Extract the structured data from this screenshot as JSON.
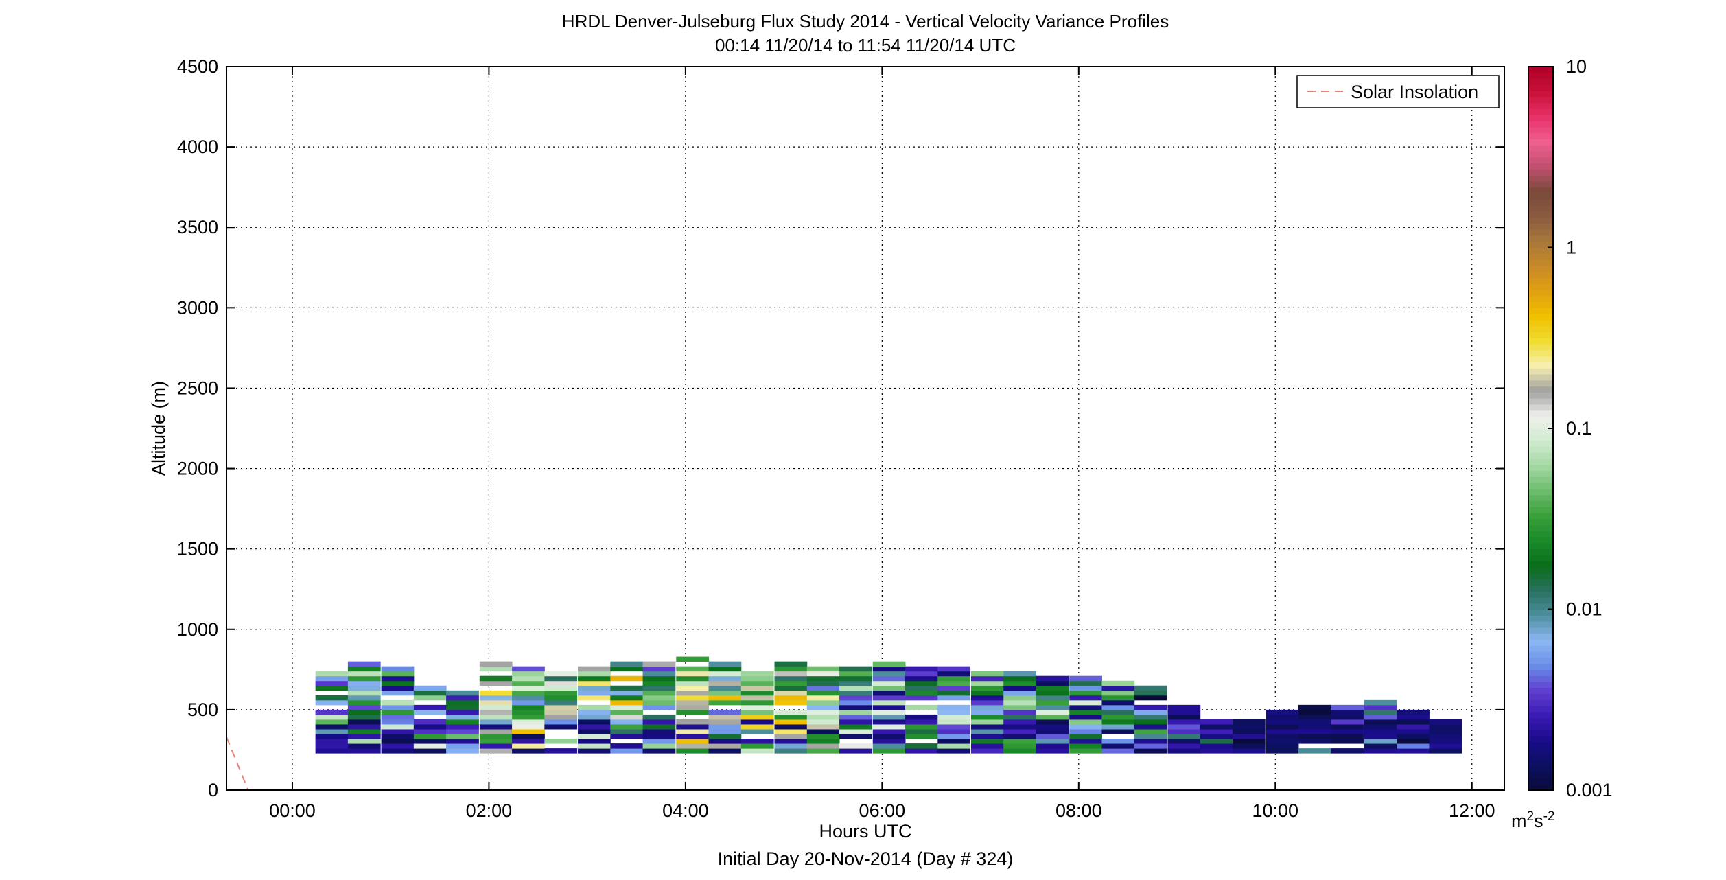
{
  "chart_data": {
    "type": "heatmap",
    "title": "HRDL Denver-Julseburg Flux Study 2014 - Vertical Velocity Variance Profiles",
    "subtitle": "00:14 11/20/14 to 11:54 11/20/14  UTC",
    "xlabel": "Hours UTC",
    "xlabel2": "Initial Day 20-Nov-2014 (Day # 324)",
    "ylabel": "Altitude (m)",
    "xlim": [
      -0.67,
      12.33
    ],
    "ylim": [
      0,
      4500
    ],
    "x_ticks": [
      0,
      2,
      4,
      6,
      8,
      10,
      12
    ],
    "x_tick_labels": [
      "00:00",
      "02:00",
      "04:00",
      "06:00",
      "08:00",
      "10:00",
      "12:00"
    ],
    "y_ticks": [
      0,
      500,
      1000,
      1500,
      2000,
      2500,
      3000,
      3500,
      4000,
      4500
    ],
    "y_tick_labels": [
      "0",
      "500",
      "1000",
      "1500",
      "2000",
      "2500",
      "3000",
      "3500",
      "4000",
      "4500"
    ],
    "grid": true,
    "legend": {
      "position": "top-right",
      "entries": [
        {
          "name": "Solar Insolation",
          "color": "#e8837a",
          "style": "dashed"
        }
      ]
    },
    "colorbar": {
      "scale": "log",
      "range": [
        0.001,
        10
      ],
      "ticks": [
        0.001,
        0.01,
        0.1,
        1,
        10
      ],
      "tick_labels": [
        "0.001",
        "0.01",
        "0.1",
        "1",
        "10"
      ],
      "unit_base": "m",
      "unit_sup1": "2",
      "unit_mid": "s",
      "unit_sup2": "-2"
    },
    "solar_insolation_line": {
      "x": [
        -0.67,
        -0.45
      ],
      "y": [
        330,
        0
      ]
    },
    "profile_times": [
      0.4,
      0.73,
      1.07,
      1.4,
      1.73,
      2.07,
      2.4,
      2.73,
      3.07,
      3.4,
      3.73,
      4.07,
      4.4,
      4.73,
      5.07,
      5.4,
      5.73,
      6.07,
      6.4,
      6.73,
      7.07,
      7.4,
      7.73,
      8.07,
      8.4,
      8.73,
      9.07,
      9.4,
      9.73,
      10.07,
      10.4,
      10.73,
      11.07,
      11.4,
      11.73
    ],
    "profile_tops_m": [
      740,
      790,
      760,
      650,
      600,
      790,
      770,
      740,
      770,
      790,
      810,
      820,
      830,
      800,
      790,
      770,
      780,
      780,
      770,
      750,
      740,
      720,
      700,
      690,
      670,
      640,
      530,
      430,
      440,
      500,
      510,
      510,
      550,
      480,
      440
    ],
    "profile_bottom_m": 230,
    "gate_height_m": 30,
    "variance_m2s2": "range 0.001 to 0.5 per 30 m gate (estimated from color scale)"
  },
  "colors": {
    "axis": "#000000",
    "grid": "#000000",
    "solar": "#e8837a",
    "colormap_stops": [
      "#0b0b3b",
      "#0c1060",
      "#1a0c8a",
      "#3a1ab4",
      "#5f3fd0",
      "#6a8ee8",
      "#8cb8f2",
      "#4f8fa0",
      "#2a7060",
      "#0a6e1a",
      "#1a8a2a",
      "#3aa03a",
      "#6cbc6c",
      "#a4d8a4",
      "#d0ead0",
      "#f0f0ec",
      "#a0a0a0",
      "#f7efb0",
      "#f1dc30",
      "#f0c000",
      "#e0a010",
      "#c88a28",
      "#a8783a",
      "#8a5a40",
      "#7a4a3a",
      "#c05070",
      "#f06090",
      "#e83068",
      "#c8103a",
      "#b00028"
    ]
  }
}
